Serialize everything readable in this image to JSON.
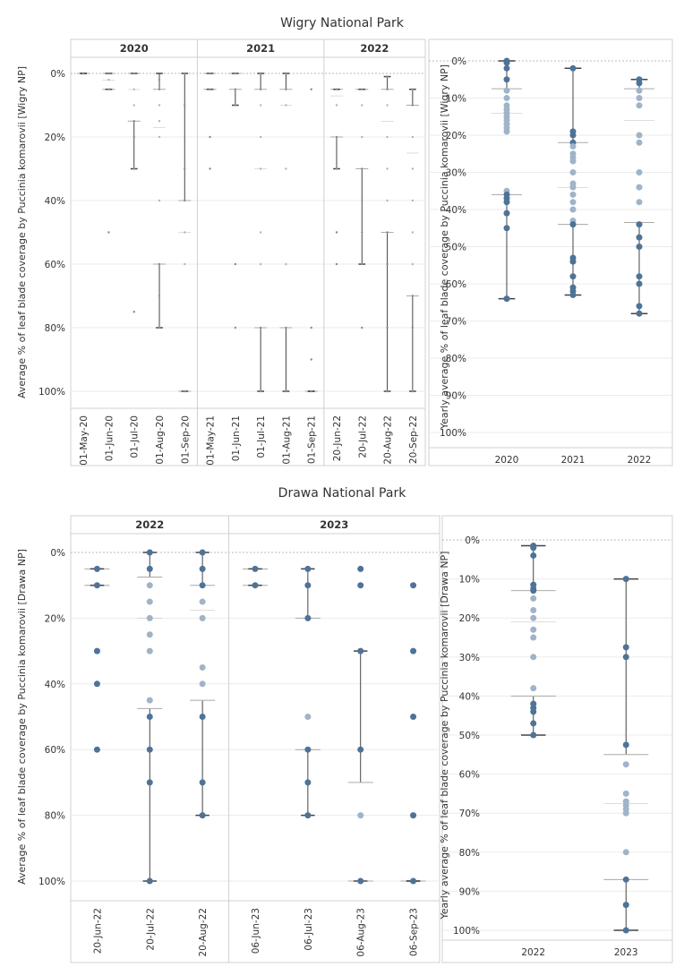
{
  "titles": {
    "wigry": "Wigry National Park",
    "drawa": "Drawa National Park"
  },
  "colors": {
    "box_light": "#e2e2e2",
    "box_dark": "#bcbcbc",
    "point": "#4e7397",
    "point_light": "#9fb4c8",
    "whisker": "#444444",
    "grid": "#ebebeb"
  },
  "chart_data": [
    {
      "type": "boxplot",
      "title": "Wigry National Park",
      "ylabel": "Average % of leaf blade coverage by Puccinia komarovii [Wigry NP]",
      "ylim": [
        0,
        100
      ],
      "yticks": [
        "0%",
        "20%",
        "40%",
        "60%",
        "80%",
        "100%"
      ],
      "groups": [
        {
          "label": "2020",
          "categories": [
            {
              "x": "01-May-20",
              "min": 0,
              "q1": 0,
              "median": 0,
              "q3": 0,
              "max": 0,
              "points": [
                0
              ]
            },
            {
              "x": "01-Jun-20",
              "min": 0,
              "q1": 0,
              "median": 2,
              "q3": 5,
              "max": 5,
              "points": [
                0,
                2,
                5,
                50
              ]
            },
            {
              "x": "01-Jul-20",
              "min": 0,
              "q1": 0,
              "median": 5,
              "q3": 15,
              "max": 30,
              "points": [
                0,
                5,
                10,
                15,
                20,
                30,
                75
              ]
            },
            {
              "x": "01-Aug-20",
              "min": 0,
              "q1": 5,
              "median": 17,
              "q3": 60,
              "max": 80,
              "points": [
                2,
                5,
                10,
                15,
                20,
                40,
                60,
                70,
                80
              ]
            },
            {
              "x": "01-Sep-20",
              "min": 0,
              "q1": 40,
              "median": 50,
              "q3": 100,
              "max": 100,
              "points": [
                0,
                10,
                30,
                40,
                50,
                60,
                100
              ]
            }
          ]
        },
        {
          "label": "2021",
          "categories": [
            {
              "x": "01-May-21",
              "min": 0,
              "q1": 0,
              "median": 0,
              "q3": 5,
              "max": 5,
              "points": [
                0,
                5,
                20,
                30
              ]
            },
            {
              "x": "01-Jun-21",
              "min": 0,
              "q1": 0,
              "median": 0,
              "q3": 5,
              "max": 10,
              "points": [
                0,
                5,
                10,
                60,
                80
              ]
            },
            {
              "x": "01-Jul-21",
              "min": 0,
              "q1": 5,
              "median": 30,
              "q3": 80,
              "max": 100,
              "points": [
                0,
                5,
                10,
                20,
                30,
                50,
                60,
                80,
                100
              ]
            },
            {
              "x": "01-Aug-21",
              "min": 0,
              "q1": 5,
              "median": 10,
              "q3": 80,
              "max": 100,
              "points": [
                0,
                5,
                10,
                30,
                60,
                80,
                100
              ]
            },
            {
              "x": "01-Sep-21",
              "min": 100,
              "q1": 100,
              "median": 100,
              "q3": 100,
              "max": 100,
              "points": [
                5,
                80,
                90,
                100
              ]
            }
          ]
        },
        {
          "label": "2022",
          "categories": [
            {
              "x": "20-Jun-22",
              "min": 5,
              "q1": 5,
              "median": 7,
              "q3": 20,
              "max": 30,
              "points": [
                5,
                10,
                20,
                30,
                50,
                60
              ]
            },
            {
              "x": "20-Jul-22",
              "min": 5,
              "q1": 5,
              "median": 5,
              "q3": 30,
              "max": 60,
              "points": [
                5,
                10,
                20,
                30,
                50,
                60,
                80
              ]
            },
            {
              "x": "20-Aug-22",
              "min": 1,
              "q1": 5,
              "median": 15,
              "q3": 50,
              "max": 100,
              "points": [
                1,
                5,
                10,
                20,
                30,
                40,
                50,
                60,
                80,
                100
              ]
            },
            {
              "x": "20-Sep-22",
              "min": 5,
              "q1": 10,
              "median": 25,
              "q3": 70,
              "max": 100,
              "points": [
                5,
                10,
                20,
                30,
                40,
                50,
                60,
                70,
                80,
                100
              ]
            }
          ]
        }
      ]
    },
    {
      "type": "boxplot",
      "ylabel": "Yearly average % of leaf blade coverage by Puccinia komarovii [Wigry NP]",
      "ylim": [
        0,
        100
      ],
      "yticks": [
        "0%",
        "10%",
        "20%",
        "30%",
        "40%",
        "50%",
        "60%",
        "70%",
        "80%",
        "90%",
        "100%"
      ],
      "categories": [
        {
          "x": "2020",
          "min": 0,
          "q1": 7.5,
          "median": 14,
          "q3": 36,
          "max": 64,
          "points": [
            0,
            0.5,
            2,
            5,
            8,
            10,
            12,
            13,
            14,
            15,
            16,
            17,
            18,
            19,
            35,
            36,
            37,
            38,
            41,
            45,
            64
          ]
        },
        {
          "x": "2021",
          "min": 2,
          "q1": 22,
          "median": 34,
          "q3": 44,
          "max": 63,
          "points": [
            2,
            19,
            20,
            22,
            23,
            25,
            26,
            27,
            30,
            33,
            34,
            36,
            38,
            40,
            43,
            44,
            53,
            54,
            58,
            61,
            62,
            63
          ]
        },
        {
          "x": "2022",
          "min": 5,
          "q1": 7.5,
          "median": 16,
          "q3": 43.5,
          "max": 68,
          "points": [
            5,
            6,
            8,
            10,
            12,
            20,
            22,
            30,
            34,
            38,
            44,
            47.5,
            50,
            58,
            60,
            66,
            68
          ]
        }
      ]
    },
    {
      "type": "boxplot",
      "title": "Drawa National Park",
      "ylabel": "Average % of leaf blade coverage by Puccinia komarovii [Drawa NP]",
      "ylim": [
        0,
        100
      ],
      "yticks": [
        "0%",
        "20%",
        "40%",
        "60%",
        "80%",
        "100%"
      ],
      "groups": [
        {
          "label": "2022",
          "categories": [
            {
              "x": "20-Jun-22",
              "min": 5,
              "q1": 5,
              "median": 10,
              "q3": 10,
              "max": 10,
              "points": [
                5,
                10,
                30,
                40,
                60
              ]
            },
            {
              "x": "20-Jul-22",
              "min": 0,
              "q1": 7.5,
              "median": 20,
              "q3": 47.5,
              "max": 100,
              "points": [
                0,
                5,
                10,
                15,
                20,
                25,
                30,
                45,
                50,
                60,
                70,
                100
              ]
            },
            {
              "x": "20-Aug-22",
              "min": 0,
              "q1": 10,
              "median": 17.5,
              "q3": 45,
              "max": 80,
              "points": [
                0,
                5,
                10,
                15,
                20,
                35,
                40,
                50,
                70,
                80
              ]
            }
          ]
        },
        {
          "label": "2023",
          "categories": [
            {
              "x": "06-Jun-23",
              "min": 5,
              "q1": 5,
              "median": 5,
              "q3": 10,
              "max": 10,
              "points": [
                5,
                10
              ]
            },
            {
              "x": "06-Jul-23",
              "min": 5,
              "q1": 20,
              "median": 60,
              "q3": 60,
              "max": 80,
              "points": [
                5,
                10,
                20,
                50,
                60,
                70,
                80
              ]
            },
            {
              "x": "06-Aug-23",
              "min": 30,
              "q1": 70,
              "median": 100,
              "q3": 100,
              "max": 100,
              "points": [
                5,
                10,
                30,
                60,
                80,
                100
              ]
            },
            {
              "x": "06-Sep-23",
              "min": 100,
              "q1": 100,
              "median": 100,
              "q3": 100,
              "max": 100,
              "points": [
                10,
                30,
                50,
                80,
                100
              ]
            }
          ]
        }
      ]
    },
    {
      "type": "boxplot",
      "ylabel": "Yearly average % of leaf blade coverage by Puccinia komarovii [Drawa NP]",
      "ylim": [
        0,
        100
      ],
      "yticks": [
        "0%",
        "10%",
        "20%",
        "30%",
        "40%",
        "50%",
        "60%",
        "70%",
        "80%",
        "90%",
        "100%"
      ],
      "categories": [
        {
          "x": "2022",
          "min": 1.5,
          "q1": 13,
          "median": 21,
          "q3": 40,
          "max": 50,
          "points": [
            1.5,
            2,
            4,
            11.5,
            12.5,
            13,
            15,
            18,
            20,
            23,
            25,
            30,
            38,
            42,
            43,
            44,
            47,
            50
          ]
        },
        {
          "x": "2023",
          "min": 10,
          "q1": 55,
          "median": 67.5,
          "q3": 87,
          "max": 100,
          "points": [
            10,
            27.5,
            30,
            52.5,
            57.5,
            65,
            67,
            68,
            69,
            70,
            80,
            87,
            93.5,
            100
          ]
        }
      ]
    }
  ]
}
